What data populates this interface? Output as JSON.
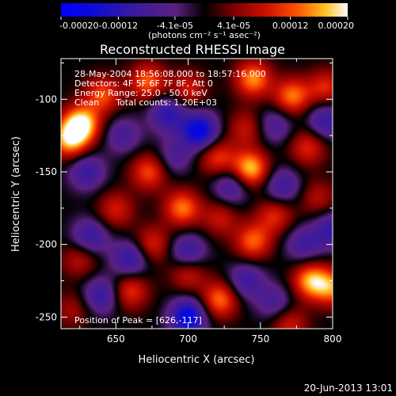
{
  "chart_data": {
    "type": "heatmap",
    "title": "Reconstructed RHESSI Image",
    "xlabel": "Heliocentric X (arcsec)",
    "ylabel": "Heliocentric Y (arcsec)",
    "xlim": [
      612,
      800
    ],
    "ylim": [
      -258,
      -72
    ],
    "xticks": [
      650,
      700,
      750,
      800
    ],
    "yticks": [
      -100,
      -150,
      -200,
      -250
    ],
    "colorbar": {
      "range": [
        -0.0002,
        0.0002
      ],
      "tick_labels": [
        "-0.00020",
        "-0.00012",
        "-4.1e-05",
        "4.1e-05",
        "0.00012",
        "0.00020"
      ],
      "tick_values": [
        -0.0002,
        -0.00012,
        -4.1e-05,
        4.1e-05,
        0.00012,
        0.0002
      ],
      "units_label": "(photons cm⁻² s⁻¹ asec⁻²)"
    },
    "info_lines": [
      "28-May-2004 18:56:08.000 to 18:57:16.000",
      "Detectors: 4F 5F 6F 7F 8F, Att 0",
      "Energy Range: 25.0 - 50.0 keV",
      "Clean      Total counts: 1.20E+03"
    ],
    "peak_label": "Position of Peak = [626,-117]",
    "peak": [
      626,
      -117
    ],
    "blobs": [
      {
        "x": 626,
        "y": -117,
        "v": 0.0002
      },
      {
        "x": 618,
        "y": -128,
        "v": 0.00016
      },
      {
        "x": 641,
        "y": -97,
        "v": 0.00012
      },
      {
        "x": 672,
        "y": -88,
        "v": 0.00013
      },
      {
        "x": 700,
        "y": -93,
        "v": 9e-05
      },
      {
        "x": 745,
        "y": -86,
        "v": 0.00015
      },
      {
        "x": 772,
        "y": -98,
        "v": 0.00014
      },
      {
        "x": 795,
        "y": -92,
        "v": 0.0001
      },
      {
        "x": 740,
        "y": -120,
        "v": 8e-05
      },
      {
        "x": 783,
        "y": -133,
        "v": 0.0001
      },
      {
        "x": 743,
        "y": -148,
        "v": 0.00018
      },
      {
        "x": 720,
        "y": -140,
        "v": 0.00011
      },
      {
        "x": 673,
        "y": -150,
        "v": 0.00012
      },
      {
        "x": 696,
        "y": -175,
        "v": 0.00014
      },
      {
        "x": 675,
        "y": -200,
        "v": 0.0001
      },
      {
        "x": 650,
        "y": -176,
        "v": 9e-05
      },
      {
        "x": 722,
        "y": -182,
        "v": 8e-05
      },
      {
        "x": 745,
        "y": -198,
        "v": 0.00013
      },
      {
        "x": 760,
        "y": -180,
        "v": 0.0001
      },
      {
        "x": 790,
        "y": -168,
        "v": 7e-05
      },
      {
        "x": 722,
        "y": -238,
        "v": 0.00014
      },
      {
        "x": 700,
        "y": -220,
        "v": 9e-05
      },
      {
        "x": 660,
        "y": -232,
        "v": 0.00011
      },
      {
        "x": 785,
        "y": -225,
        "v": 0.00016
      },
      {
        "x": 800,
        "y": -230,
        "v": 0.00013
      },
      {
        "x": 770,
        "y": -255,
        "v": 9e-05
      },
      {
        "x": 625,
        "y": -210,
        "v": 8e-05
      },
      {
        "x": 620,
        "y": -245,
        "v": 6e-05
      },
      {
        "x": 686,
        "y": -110,
        "v": -0.00012
      },
      {
        "x": 708,
        "y": -122,
        "v": -0.00018
      },
      {
        "x": 655,
        "y": -125,
        "v": -8e-05
      },
      {
        "x": 760,
        "y": -118,
        "v": -8e-05
      },
      {
        "x": 795,
        "y": -115,
        "v": -0.00011
      },
      {
        "x": 630,
        "y": -150,
        "v": -0.0001
      },
      {
        "x": 632,
        "y": -195,
        "v": -0.00011
      },
      {
        "x": 660,
        "y": -210,
        "v": -0.00012
      },
      {
        "x": 700,
        "y": -205,
        "v": -0.00011
      },
      {
        "x": 730,
        "y": -160,
        "v": -0.0001
      },
      {
        "x": 765,
        "y": -160,
        "v": -0.0001
      },
      {
        "x": 780,
        "y": -200,
        "v": -9e-05
      },
      {
        "x": 800,
        "y": -190,
        "v": -0.00011
      },
      {
        "x": 640,
        "y": -235,
        "v": -0.00011
      },
      {
        "x": 700,
        "y": -250,
        "v": -0.00018
      },
      {
        "x": 740,
        "y": -225,
        "v": -0.0001
      },
      {
        "x": 690,
        "y": -140,
        "v": -7e-05
      },
      {
        "x": 760,
        "y": -240,
        "v": -8e-05
      }
    ]
  },
  "footer_timestamp": "20-Jun-2013 13:01"
}
